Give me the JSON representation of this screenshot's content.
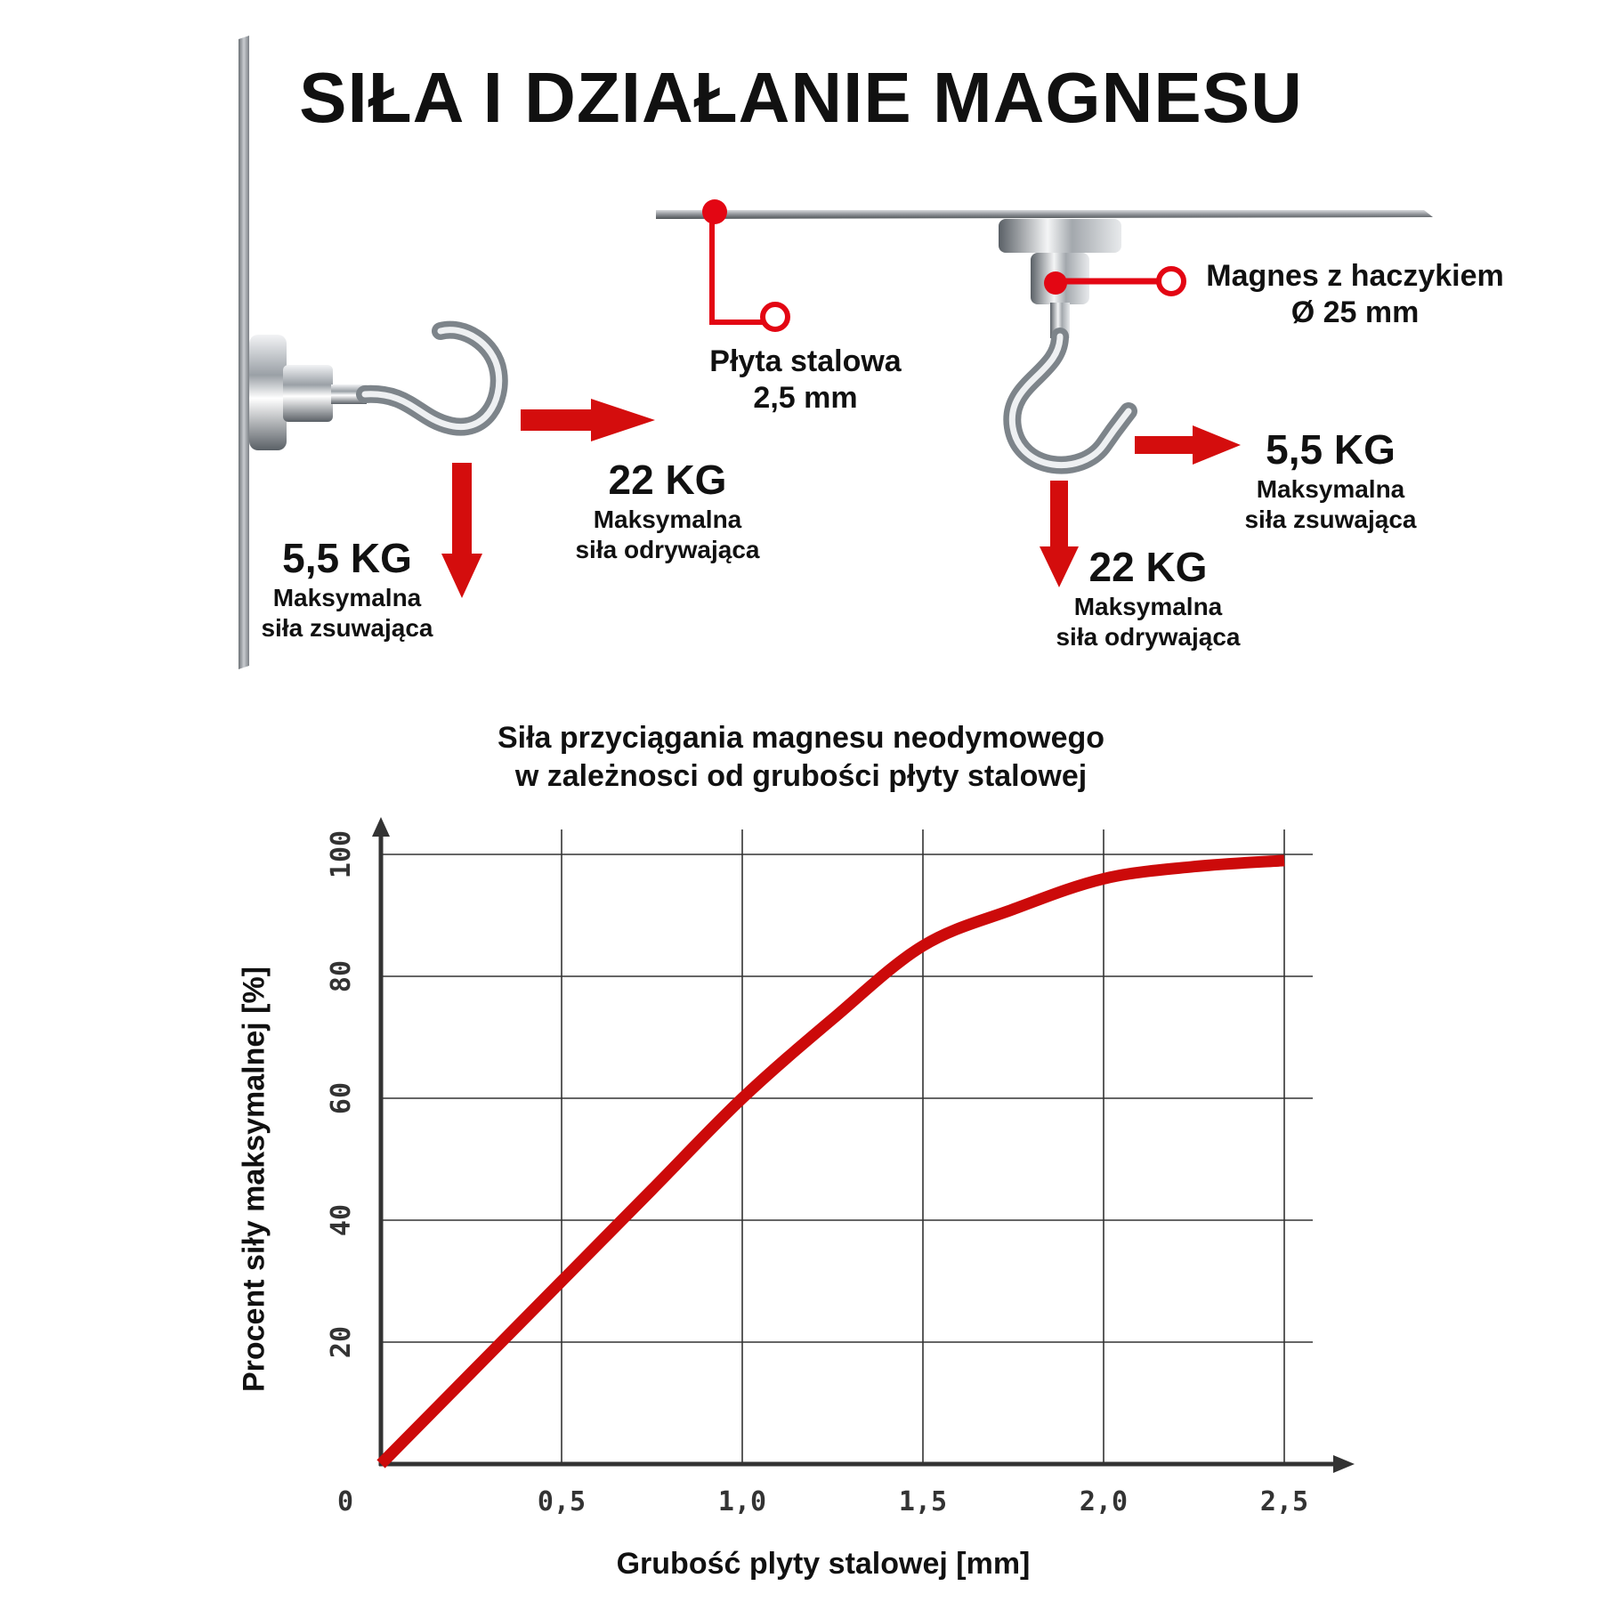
{
  "title": "SIŁA I DZIAŁANIE MAGNESU",
  "wall_setup": {
    "slide_value": "5,5 KG",
    "slide_label_1": "Maksymalna",
    "slide_label_2": "siła zsuwająca",
    "pull_value": "22 KG",
    "pull_label_1": "Maksymalna",
    "pull_label_2": "siła odrywająca"
  },
  "ceiling_setup": {
    "plate_label_1": "Płyta stalowa",
    "plate_label_2": "2,5 mm",
    "magnet_label_1": "Magnes z haczykiem",
    "magnet_label_2": "Ø 25 mm",
    "slide_value": "5,5 KG",
    "slide_label_1": "Maksymalna",
    "slide_label_2": "siła zsuwająca",
    "pull_value": "22 KG",
    "pull_label_1": "Maksymalna",
    "pull_label_2": "siła odrywająca"
  },
  "colors": {
    "accent": "#e30613",
    "curve": "#cc0a0a",
    "steel": "#9a9ea3",
    "grid": "#333333"
  },
  "chart_data": {
    "type": "line",
    "title_line_1": "Siła przyciągania magnesu neodymowego",
    "title_line_2": "w zależnosci od grubości płyty stalowej",
    "xlabel": "Grubość plyty stalowej [mm]",
    "ylabel": "Procent siły maksymalnej [%]",
    "xlim": [
      0,
      2.5
    ],
    "ylim": [
      0,
      100
    ],
    "x_ticks": [
      "0",
      "0,5",
      "1,0",
      "1,5",
      "2,0",
      "2,5"
    ],
    "y_ticks": [
      "20",
      "40",
      "60",
      "80",
      "100"
    ],
    "grid": true,
    "series": [
      {
        "x": [
          0,
          0.25,
          0.5,
          0.75,
          1.0,
          1.25,
          1.5,
          1.75,
          2.0,
          2.25,
          2.5
        ],
        "y": [
          0,
          15,
          30,
          45,
          60,
          73,
          85,
          91,
          96,
          98,
          99
        ]
      }
    ]
  }
}
